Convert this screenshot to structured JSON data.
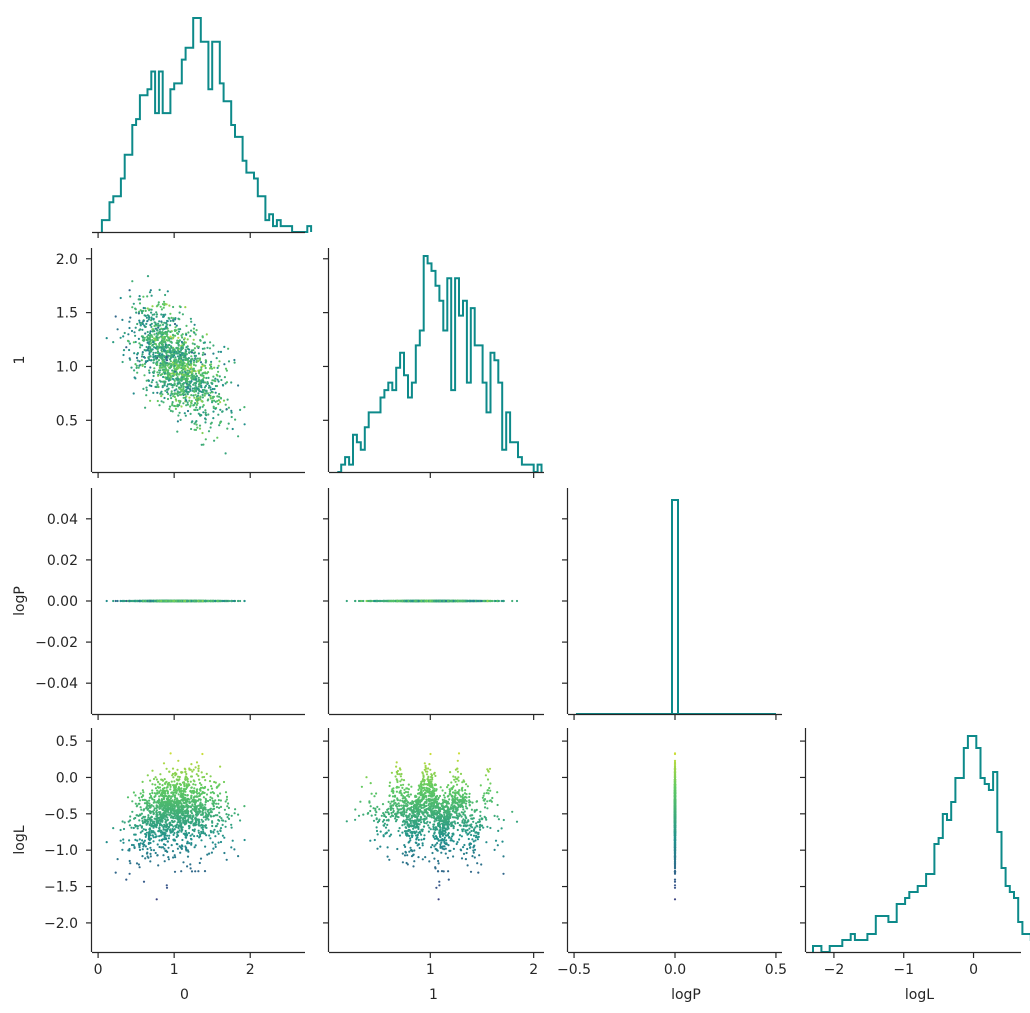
{
  "chart_data": {
    "type": "corner",
    "variables": [
      "0",
      "1",
      "logP",
      "logL"
    ],
    "axis_labels": {
      "x": [
        "0",
        "1",
        "logP",
        "logL"
      ],
      "y": [
        "",
        "1",
        "logP",
        "logL"
      ]
    },
    "colors": {
      "hist": "#0d8a8a",
      "colormap": [
        "#440154",
        "#3b528b",
        "#21918c",
        "#5ec962",
        "#fde725"
      ],
      "spine": "#262626"
    },
    "color_encoding": "points colored by logL (viridis)",
    "n_points_estimate": 2400,
    "ranges": {
      "0": [
        -0.08,
        2.72
      ],
      "1": [
        0.02,
        2.1
      ],
      "logP": [
        -0.055,
        0.055
      ],
      "logL": [
        -2.4,
        0.68
      ],
      "logP_hist_x": [
        -0.53,
        0.53
      ]
    },
    "ticks": {
      "0": [
        0,
        1,
        2
      ],
      "1": [
        0.5,
        1.0,
        1.5,
        2.0
      ],
      "1_x": [
        1,
        2
      ],
      "logP": [
        -0.04,
        -0.02,
        0.0,
        0.02,
        0.04
      ],
      "logP_x": [
        -0.5,
        0.0,
        0.5
      ],
      "logL": [
        -2.0,
        -1.5,
        -1.0,
        -0.5,
        0.0,
        0.5
      ],
      "logL_x": [
        -2,
        -1,
        0
      ]
    },
    "tick_labels": {
      "x0": [
        "0",
        "1",
        "2"
      ],
      "x1": [
        "1",
        "2"
      ],
      "xlogP": [
        "−0.5",
        "0.0",
        "0.5"
      ],
      "xlogL": [
        "−2",
        "−1",
        "0"
      ],
      "y1": [
        "0.5",
        "1.0",
        "1.5",
        "2.0"
      ],
      "ylogP": [
        "−0.04",
        "−0.02",
        "0.00",
        "0.02",
        "0.04"
      ],
      "ylogL": [
        "−2.0",
        "−1.5",
        "−1.0",
        "−0.5",
        "0.0",
        "0.5"
      ]
    },
    "histograms": {
      "0": {
        "bin_start": 0.05,
        "bin_width": 0.05,
        "counts": [
          2,
          2,
          5,
          6,
          6,
          9,
          13,
          13,
          18,
          19,
          23,
          23,
          24,
          27,
          20,
          27,
          20,
          20,
          24,
          25,
          25,
          29,
          31,
          31,
          36,
          36,
          32,
          32,
          24,
          32,
          32,
          25,
          22,
          22,
          18,
          16,
          16,
          12,
          10,
          10,
          9,
          6,
          6,
          2,
          3,
          1,
          2,
          1,
          1,
          1,
          0,
          0,
          0,
          0,
          1
        ]
      },
      "1": {
        "bin_start": 0.1,
        "bin_width": 0.038,
        "counts": [
          0,
          1,
          2,
          1,
          5,
          4,
          3,
          6,
          8,
          8,
          8,
          10,
          11,
          12,
          11,
          14,
          16,
          13,
          10,
          12,
          17,
          19,
          29,
          28,
          27,
          25,
          23,
          19,
          26,
          11,
          26,
          21,
          23,
          12,
          22,
          17,
          17,
          12,
          8,
          16,
          15,
          12,
          3,
          8,
          4,
          4,
          2,
          1,
          1,
          1,
          0,
          1
        ]
      },
      "logP": {
        "value": 0.0,
        "count": 2400
      },
      "logL": {
        "bin_start": -2.3,
        "bin_width": 0.06,
        "counts": [
          1,
          1,
          0,
          0,
          1,
          1,
          1,
          2,
          2,
          3,
          2,
          2,
          2,
          3,
          3,
          6,
          6,
          6,
          5,
          5,
          8,
          8,
          9,
          10,
          10,
          11,
          11,
          13,
          13,
          18,
          19,
          23,
          22,
          25,
          29,
          29,
          34,
          36,
          36,
          34,
          29,
          28,
          27,
          30,
          20,
          14,
          11,
          10,
          9,
          5,
          3,
          3,
          2,
          1,
          1,
          0
        ]
      }
    },
    "scatter_structure": {
      "x0_vs_x1": "negatively correlated cloud, x1 ≈ 1.55 − 0.5·x0, spread ±0.35",
      "x0_vs_logL": "logL peaks near x0 ≈ 1.2 (≈0.3), declining toward the edges, tail down to −2.2",
      "x1_vs_logL": "banded striations, peaks at x1 ≈ 0.25, 0.55, 0.85, 1.0, 1.35, 1.45",
      "logP": "all points at logP = 0"
    }
  }
}
